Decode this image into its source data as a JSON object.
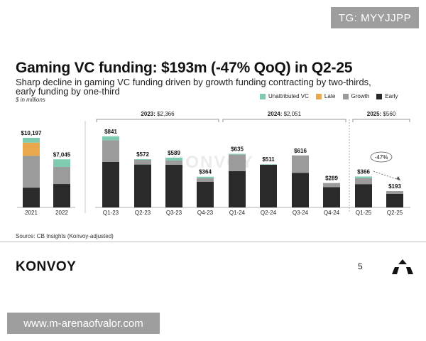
{
  "watermark_top": "TG: MYYJJPP",
  "header": {
    "title": "Gaming VC funding: $193m (-47% QoQ) in Q2-25",
    "subtitle_line1": "Sharp decline in gaming VC funding driven by growth funding contracting by two-thirds,",
    "subtitle_line2": "early funding by one-third",
    "units": "$ in millions"
  },
  "legend": [
    {
      "name": "Unattributed VC",
      "color": "#7fcbb0"
    },
    {
      "name": "Late",
      "color": "#e9a84c"
    },
    {
      "name": "Growth",
      "color": "#9b9b9b"
    },
    {
      "name": "Early",
      "color": "#2a2a2a"
    }
  ],
  "chart_data": {
    "type": "bar",
    "stacked": true,
    "stack_order": [
      "Early",
      "Growth",
      "Late",
      "Unattributed VC"
    ],
    "categories": [
      "2021",
      "2022",
      "Q1-23",
      "Q2-23",
      "Q3-23",
      "Q4-23",
      "Q1-24",
      "Q2-24",
      "Q3-24",
      "Q4-24",
      "Q1-25",
      "Q2-25"
    ],
    "totals_labels": [
      "$10,197",
      "$7,045",
      "$841",
      "$572",
      "$589",
      "$364",
      "$635",
      "$511",
      "$616",
      "$289",
      "$366",
      "$193"
    ],
    "panels": [
      {
        "name": "annual",
        "ymax": 10197,
        "categories": [
          "2021",
          "2022"
        ]
      },
      {
        "name": "quarterly",
        "ymax": 841,
        "categories": [
          "Q1-23",
          "Q2-23",
          "Q3-23",
          "Q4-23",
          "Q1-24",
          "Q2-24",
          "Q3-24",
          "Q4-24",
          "Q1-25",
          "Q2-25"
        ]
      }
    ],
    "series": [
      {
        "name": "Early",
        "values": [
          2900,
          3430,
          540,
          508,
          505,
          305,
          430,
          505,
          410,
          240,
          276,
          162
        ]
      },
      {
        "name": "Growth",
        "values": [
          4650,
          2505,
          256,
          56,
          52,
          42,
          195,
          0,
          206,
          49,
          70,
          31
        ]
      },
      {
        "name": "Late",
        "values": [
          1940,
          0,
          0,
          0,
          0,
          0,
          0,
          0,
          0,
          0,
          0,
          0
        ]
      },
      {
        "name": "Unattributed VC",
        "values": [
          707,
          1110,
          45,
          8,
          32,
          17,
          10,
          6,
          0,
          0,
          20,
          0
        ]
      }
    ],
    "groups": [
      {
        "label": "2023: $2,366",
        "categories": [
          "Q1-23",
          "Q2-23",
          "Q3-23",
          "Q4-23"
        ]
      },
      {
        "label": "2024: $2,051",
        "categories": [
          "Q1-24",
          "Q2-24",
          "Q3-24",
          "Q4-24"
        ]
      },
      {
        "label": "2025: $560",
        "categories": [
          "Q1-25",
          "Q2-25"
        ]
      }
    ],
    "annotation": {
      "text": "-47%",
      "from": "Q1-25",
      "to": "Q2-25"
    },
    "watermark": "KONVOY"
  },
  "source": "Source: CB Insights (Konvoy-adjusted)",
  "footer": {
    "brand": "KONVOY",
    "page_number": "5"
  },
  "watermark_bottom": "www.m-arenaofvalor.com"
}
